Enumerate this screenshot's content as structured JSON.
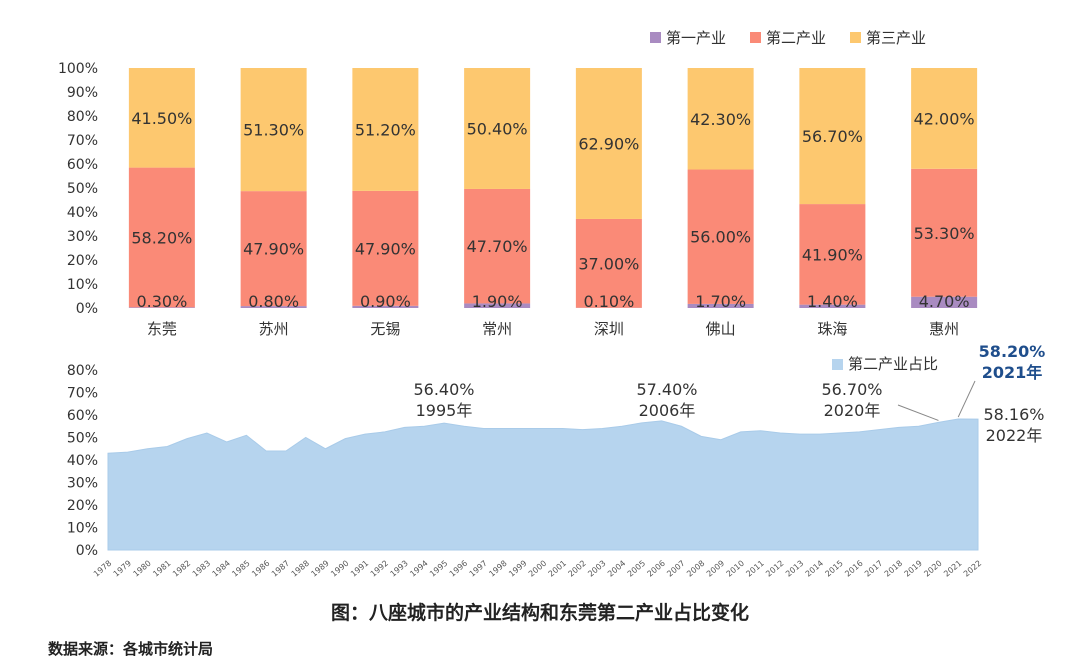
{
  "chart_data": [
    {
      "type": "bar",
      "stacked": true,
      "categories": [
        "东莞",
        "苏州",
        "无锡",
        "常州",
        "深圳",
        "佛山",
        "珠海",
        "惠州"
      ],
      "series": [
        {
          "name": "第一产业",
          "values": [
            0.3,
            0.8,
            0.9,
            1.9,
            0.1,
            1.7,
            1.4,
            4.7
          ],
          "labels": [
            "0.30%",
            "0.80%",
            "0.90%",
            "1.90%",
            "0.10%",
            "1.70%",
            "1.40%",
            "4.70%"
          ],
          "color": "#a98bc1"
        },
        {
          "name": "第二产业",
          "values": [
            58.2,
            47.9,
            47.9,
            47.7,
            37.0,
            56.0,
            41.9,
            53.3
          ],
          "labels": [
            "58.20%",
            "47.90%",
            "47.90%",
            "47.70%",
            "37.00%",
            "56.00%",
            "41.90%",
            "53.30%"
          ],
          "color": "#fa8a77"
        },
        {
          "name": "第三产业",
          "values": [
            41.5,
            51.3,
            51.2,
            50.4,
            62.9,
            42.3,
            56.7,
            42.0
          ],
          "labels": [
            "41.50%",
            "51.30%",
            "51.20%",
            "50.40%",
            "62.90%",
            "42.30%",
            "56.70%",
            "42.00%"
          ],
          "color": "#fdc86f"
        }
      ],
      "yticks": [
        "0%",
        "10%",
        "20%",
        "30%",
        "40%",
        "50%",
        "60%",
        "70%",
        "80%",
        "90%",
        "100%"
      ],
      "ylim": [
        0,
        100
      ],
      "legend": "top-right"
    },
    {
      "type": "area",
      "series_name": "第二产业占比",
      "color": "#b6d4ee",
      "x": [
        "1978",
        "1979",
        "1980",
        "1981",
        "1982",
        "1983",
        "1984",
        "1985",
        "1986",
        "1987",
        "1988",
        "1989",
        "1990",
        "1991",
        "1992",
        "1993",
        "1994",
        "1995",
        "1996",
        "1997",
        "1998",
        "1999",
        "2000",
        "2001",
        "2002",
        "2003",
        "2004",
        "2005",
        "2006",
        "2007",
        "2008",
        "2009",
        "2010",
        "2011",
        "2012",
        "2013",
        "2014",
        "2015",
        "2016",
        "2017",
        "2018",
        "2019",
        "2020",
        "2021",
        "2022"
      ],
      "y": [
        43.0,
        43.5,
        45.0,
        46.0,
        49.5,
        52.0,
        48.0,
        51.0,
        44.0,
        44.0,
        50.0,
        45.0,
        49.5,
        51.5,
        52.5,
        54.5,
        55.0,
        56.4,
        55.0,
        54.0,
        54.0,
        54.0,
        54.0,
        54.0,
        53.5,
        54.0,
        55.0,
        56.5,
        57.4,
        55.0,
        50.5,
        49.0,
        52.5,
        53.0,
        52.0,
        51.5,
        51.5,
        52.0,
        52.5,
        53.5,
        54.5,
        55.0,
        56.7,
        58.2,
        58.16
      ],
      "yticks": [
        "0%",
        "10%",
        "20%",
        "30%",
        "40%",
        "50%",
        "60%",
        "70%",
        "80%"
      ],
      "ylim": [
        0,
        80
      ],
      "legend": "top-right",
      "annotations": [
        {
          "value": "56.40%",
          "year": "1995年",
          "x": "1995"
        },
        {
          "value": "57.40%",
          "year": "2006年",
          "x": "2006"
        },
        {
          "value": "56.70%",
          "year": "2020年",
          "x": "2020"
        },
        {
          "value": "58.20%",
          "year": "2021年",
          "x": "2021",
          "highlight": true
        },
        {
          "value": "58.16%",
          "year": "2022年",
          "x": "2022"
        }
      ]
    }
  ],
  "caption": "图：八座城市的产业结构和东莞第二产业占比变化",
  "source": "数据来源：各城市统计局"
}
